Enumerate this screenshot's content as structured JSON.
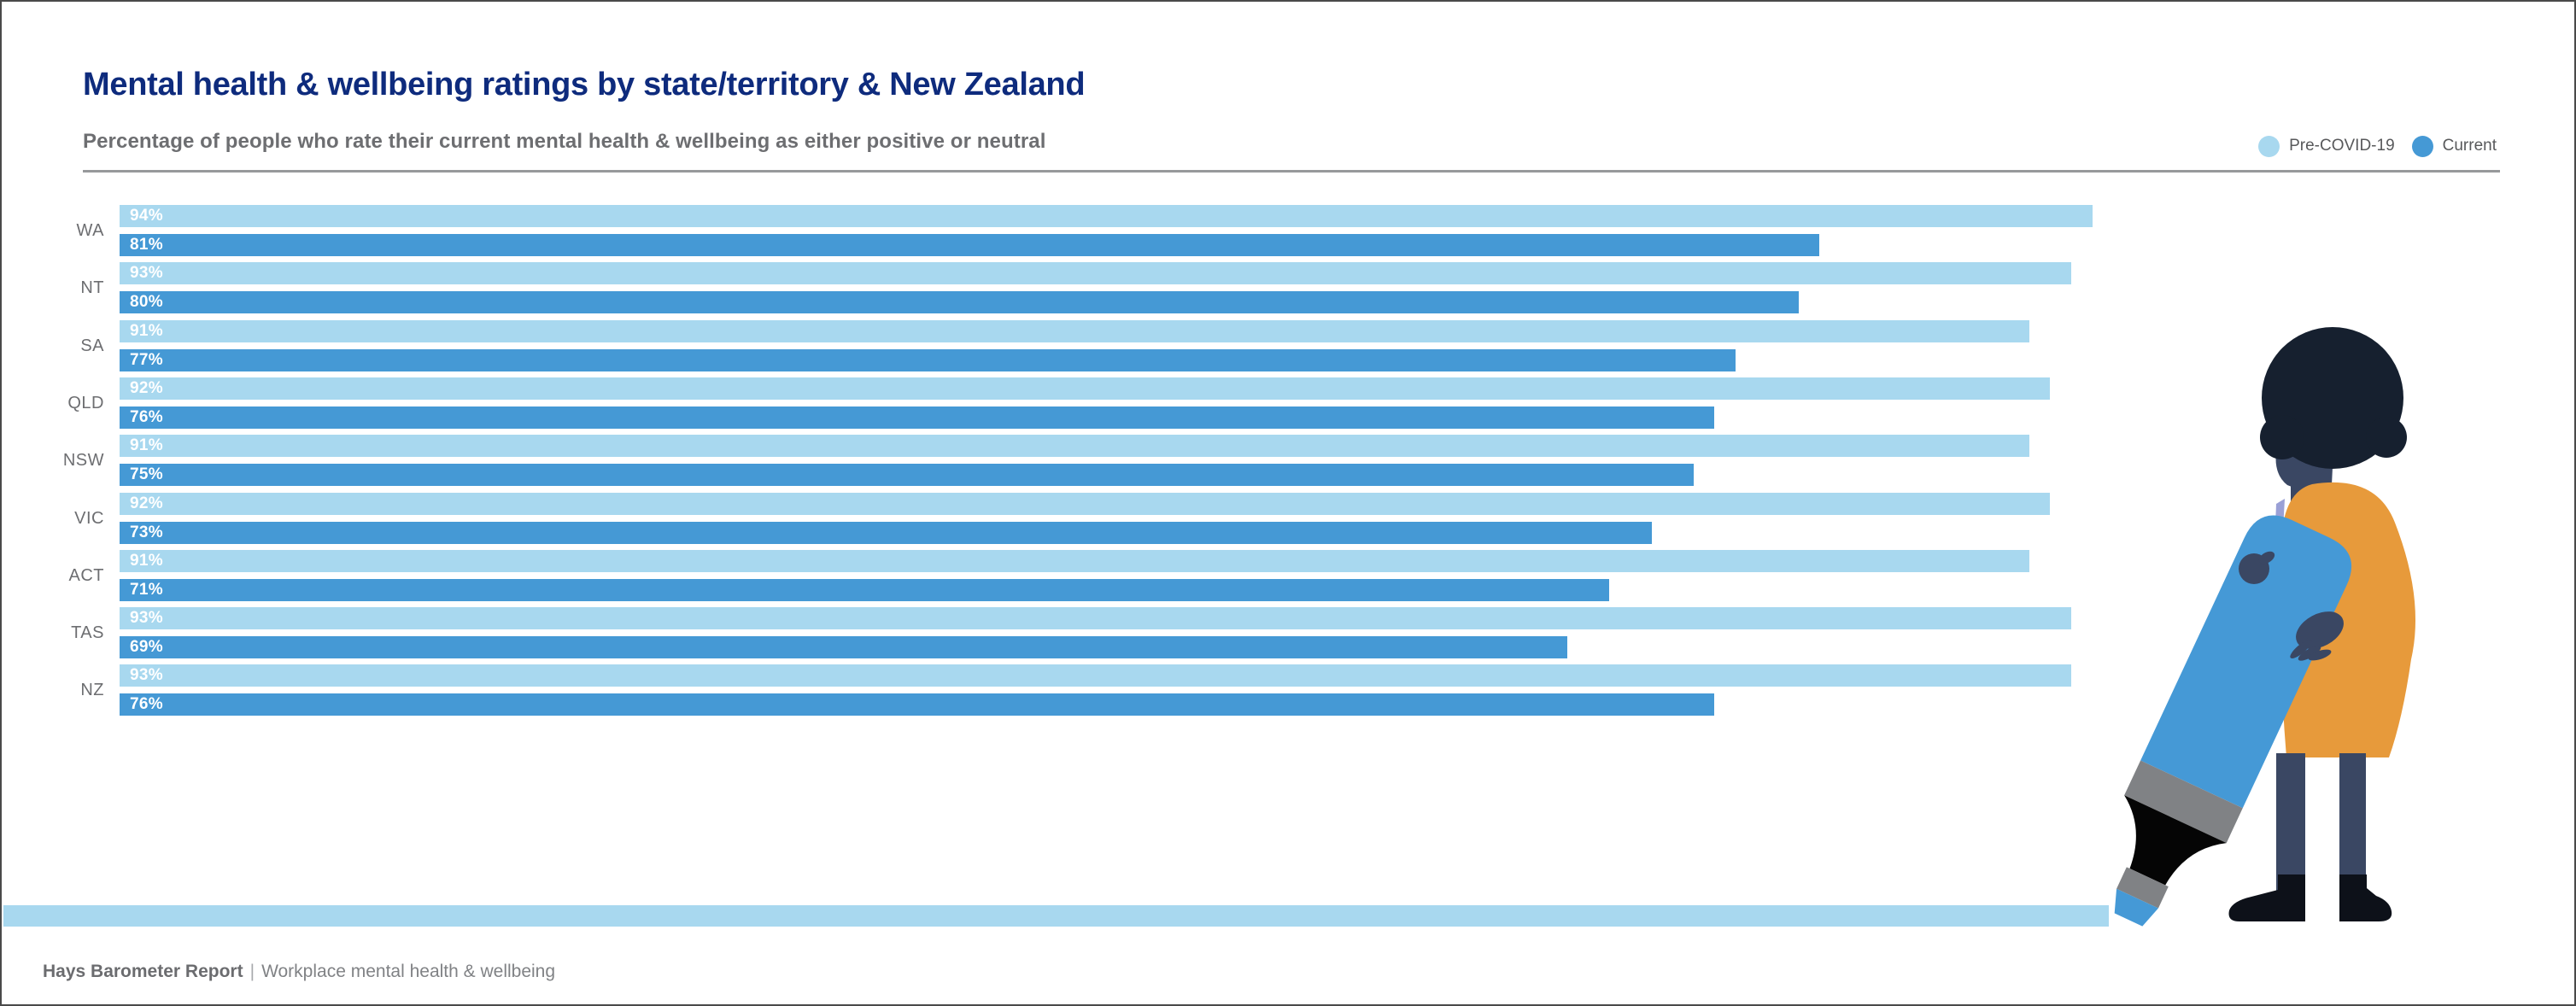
{
  "header": {
    "title": "Mental health & wellbeing ratings by state/territory & New Zealand",
    "subtitle": "Percentage of people who rate their current mental health & wellbeing as either positive or neutral"
  },
  "legend": {
    "items": [
      {
        "label": "Pre-COVID-19",
        "color": "#a8d8ef"
      },
      {
        "label": "Current",
        "color": "#4599d5"
      }
    ]
  },
  "chart_data": {
    "type": "bar",
    "orientation": "horizontal",
    "title": "Mental health & wellbeing ratings by state/territory & New Zealand",
    "subtitle": "Percentage of people who rate their current mental health & wellbeing as either positive or neutral",
    "categories": [
      "WA",
      "NT",
      "SA",
      "QLD",
      "NSW",
      "VIC",
      "ACT",
      "TAS",
      "NZ"
    ],
    "series": [
      {
        "name": "Pre-COVID-19",
        "color": "#a8d8ef",
        "values": [
          94,
          93,
          91,
          92,
          91,
          92,
          91,
          93,
          93
        ]
      },
      {
        "name": "Current",
        "color": "#4599d5",
        "values": [
          81,
          80,
          77,
          76,
          75,
          73,
          71,
          69,
          76
        ]
      }
    ],
    "value_suffix": "%",
    "xlim": [
      0,
      100
    ],
    "grid": false,
    "legend_position": "top-right",
    "bar_value_labels": "inside-start"
  },
  "footer": {
    "brand": "Hays Barometer Report",
    "separator": "|",
    "label": "Workplace mental health & wellbeing"
  },
  "colors": {
    "title_navy": "#0e2b7d",
    "text_gray": "#6d6e71",
    "divider_gray": "#97999b",
    "pre_covid_blue": "#a8d8ef",
    "current_blue": "#4599d5",
    "strip_blue": "#a8d8ef",
    "illustration_orange": "#e79a3b",
    "illustration_navy": "#3a4763",
    "illustration_hair": "#16202f"
  }
}
